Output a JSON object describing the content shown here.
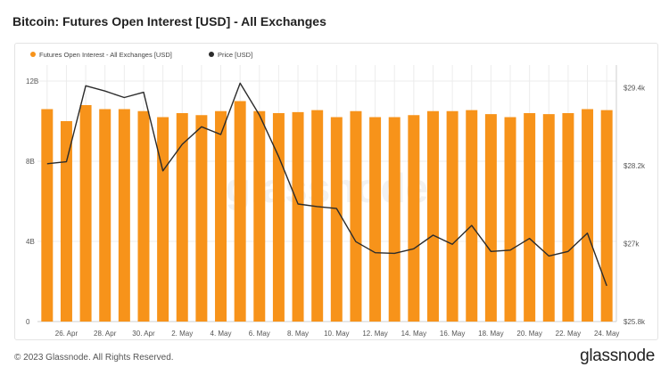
{
  "title": "Bitcoin: Futures Open Interest [USD] - All Exchanges",
  "footer": {
    "copyright": "© 2023 Glassnode. All Rights Reserved.",
    "brand": "glassnode",
    "watermark": "glassnode"
  },
  "colors": {
    "bar": "#f7931a",
    "line": "#2b2b2b",
    "grid": "#ececec"
  },
  "chart_data": {
    "type": "bar",
    "legend_position": "top-left",
    "grid": true,
    "series": [
      {
        "name": "Futures Open Interest - All Exchanges [USD]",
        "type": "bar",
        "axis": "left",
        "values": [
          10.6,
          10.0,
          10.8,
          10.6,
          10.6,
          10.5,
          10.2,
          10.4,
          10.3,
          10.5,
          11.0,
          10.5,
          10.4,
          10.45,
          10.55,
          10.2,
          10.5,
          10.2,
          10.2,
          10.3,
          10.5,
          10.5,
          10.55,
          10.35,
          10.2,
          10.4,
          10.35,
          10.4,
          10.6,
          10.55
        ]
      },
      {
        "name": "Price [USD]",
        "type": "line",
        "axis": "right",
        "values": [
          28230,
          28260,
          29430,
          29350,
          29250,
          29330,
          28120,
          28530,
          28800,
          28680,
          29470,
          28980,
          28340,
          27610,
          27570,
          27540,
          27030,
          26860,
          26850,
          26920,
          27130,
          26990,
          27280,
          26880,
          26900,
          27080,
          26810,
          26880,
          27160,
          26350
        ]
      }
    ],
    "x_tick_labels": [
      "26. Apr",
      "28. Apr",
      "30. Apr",
      "2. May",
      "4. May",
      "6. May",
      "8. May",
      "10. May",
      "12. May",
      "14. May",
      "16. May",
      "18. May",
      "20. May",
      "22. May",
      "24. May"
    ],
    "y_left": {
      "range": [
        0,
        12.8
      ],
      "ticks": [
        {
          "value": 0,
          "label": "0"
        },
        {
          "value": 4,
          "label": "4B"
        },
        {
          "value": 8,
          "label": "8B"
        },
        {
          "value": 12,
          "label": "12B"
        }
      ]
    },
    "y_right": {
      "range": [
        25800,
        29750
      ],
      "ticks": [
        {
          "value": 25800,
          "label": "$25.8k"
        },
        {
          "value": 27000,
          "label": "$27k"
        },
        {
          "value": 28200,
          "label": "$28.2k"
        },
        {
          "value": 29400,
          "label": "$29.4k"
        }
      ]
    }
  }
}
